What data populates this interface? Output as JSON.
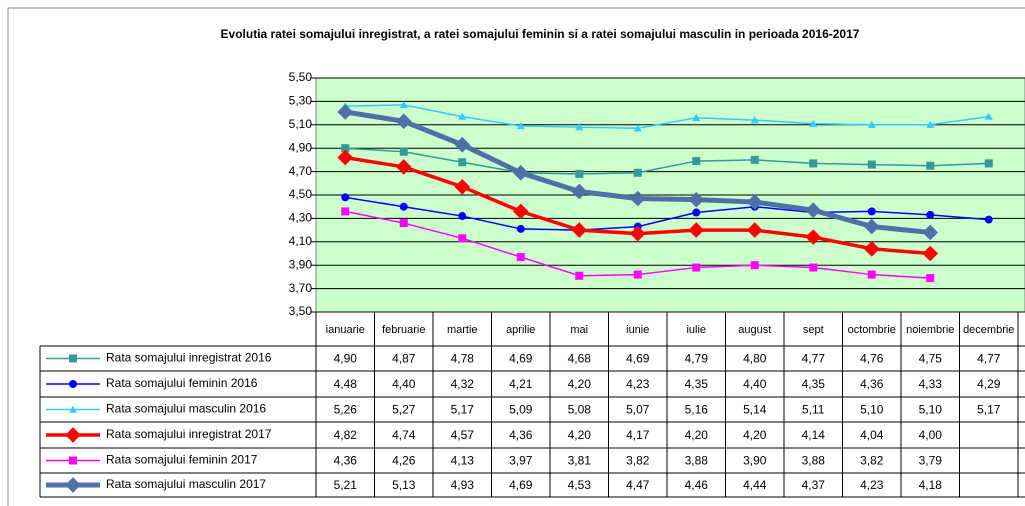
{
  "chart_data": {
    "type": "line",
    "title": "Evolutia ratei somajului inregistrat, a ratei somajului feminin si a ratei somajului masculin in perioada 2016-2017",
    "categories": [
      "ianuarie",
      "februarie",
      "martie",
      "aprilie",
      "mai",
      "iunie",
      "iulie",
      "august",
      "sept",
      "octombrie",
      "noiembrie",
      "decembrie"
    ],
    "ylim": [
      3.5,
      5.5
    ],
    "yticks": [
      {
        "value": 5.5,
        "label": "5,50"
      },
      {
        "value": 5.3,
        "label": "5,30"
      },
      {
        "value": 5.1,
        "label": "5,10"
      },
      {
        "value": 4.9,
        "label": "4,90"
      },
      {
        "value": 4.7,
        "label": "4,70"
      },
      {
        "value": 4.5,
        "label": "4,50"
      },
      {
        "value": 4.3,
        "label": "4,30"
      },
      {
        "value": 4.1,
        "label": "4,10"
      },
      {
        "value": 3.9,
        "label": "3,90"
      },
      {
        "value": 3.7,
        "label": "3,70"
      },
      {
        "value": 3.5,
        "label": "3,50"
      }
    ],
    "grid": true,
    "plot_background": "#ccffcc",
    "series": [
      {
        "name": "Rata somajului inregistrat 2016",
        "color": "#339999",
        "marker": "square",
        "line_width": 1.5,
        "values": [
          4.9,
          4.87,
          4.78,
          4.69,
          4.68,
          4.69,
          4.79,
          4.8,
          4.77,
          4.76,
          4.75,
          4.77
        ],
        "value_labels": [
          "4,90",
          "4,87",
          "4,78",
          "4,69",
          "4,68",
          "4,69",
          "4,79",
          "4,80",
          "4,77",
          "4,76",
          "4,75",
          "4,77"
        ]
      },
      {
        "name": "Rata somajului feminin 2016",
        "color": "#0000ff",
        "marker": "circle",
        "line_width": 1.5,
        "values": [
          4.48,
          4.4,
          4.32,
          4.21,
          4.2,
          4.23,
          4.35,
          4.4,
          4.35,
          4.36,
          4.33,
          4.29
        ],
        "value_labels": [
          "4,48",
          "4,40",
          "4,32",
          "4,21",
          "4,20",
          "4,23",
          "4,35",
          "4,40",
          "4,35",
          "4,36",
          "4,33",
          "4,29"
        ]
      },
      {
        "name": "Rata somajului masculin 2016",
        "color": "#33ccff",
        "marker": "triangle",
        "line_width": 1.5,
        "values": [
          5.26,
          5.27,
          5.17,
          5.09,
          5.08,
          5.07,
          5.16,
          5.14,
          5.11,
          5.1,
          5.1,
          5.17
        ],
        "value_labels": [
          "5,26",
          "5,27",
          "5,17",
          "5,09",
          "5,08",
          "5,07",
          "5,16",
          "5,14",
          "5,11",
          "5,10",
          "5,10",
          "5,17"
        ]
      },
      {
        "name": "Rata somajului inregistrat 2017",
        "color": "#ff0000",
        "marker": "diamond",
        "line_width": 3.5,
        "values": [
          4.82,
          4.74,
          4.57,
          4.36,
          4.2,
          4.17,
          4.2,
          4.2,
          4.14,
          4.04,
          4.0,
          null
        ],
        "value_labels": [
          "4,82",
          "4,74",
          "4,57",
          "4,36",
          "4,20",
          "4,17",
          "4,20",
          "4,20",
          "4,14",
          "4,04",
          "4,00",
          null
        ]
      },
      {
        "name": "Rata somajului feminin 2017",
        "color": "#ff00ff",
        "marker": "square",
        "line_width": 1.5,
        "values": [
          4.36,
          4.26,
          4.13,
          3.97,
          3.81,
          3.82,
          3.88,
          3.9,
          3.88,
          3.82,
          3.79,
          null
        ],
        "value_labels": [
          "4,36",
          "4,26",
          "4,13",
          "3,97",
          "3,81",
          "3,82",
          "3,88",
          "3,90",
          "3,88",
          "3,82",
          "3,79",
          null
        ]
      },
      {
        "name": "Rata somajului masculin 2017",
        "color": "#4f6fa8",
        "marker": "diamond",
        "line_width": 5,
        "values": [
          5.21,
          5.13,
          4.93,
          4.69,
          4.53,
          4.47,
          4.46,
          4.44,
          4.37,
          4.23,
          4.18,
          null
        ],
        "value_labels": [
          "5,21",
          "5,13",
          "4,93",
          "4,69",
          "4,53",
          "4,47",
          "4,46",
          "4,44",
          "4,37",
          "4,23",
          "4,18",
          null
        ]
      }
    ]
  }
}
